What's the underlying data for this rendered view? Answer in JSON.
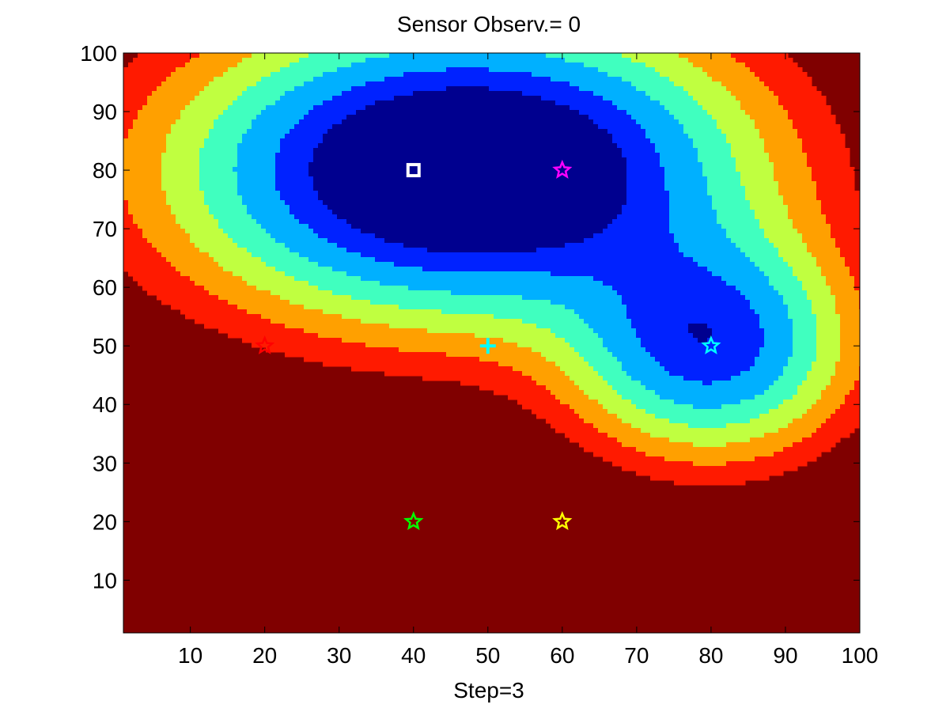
{
  "chart_data": {
    "type": "contour",
    "title": "Sensor  Observ.= 0",
    "xlabel": "Step=3",
    "ylabel": "",
    "xlim": [
      1,
      100
    ],
    "ylim": [
      1,
      100
    ],
    "xticks": [
      10,
      20,
      30,
      40,
      50,
      60,
      70,
      80,
      90,
      100
    ],
    "yticks": [
      10,
      20,
      30,
      40,
      50,
      60,
      70,
      80,
      90,
      100
    ],
    "grid": false,
    "colormap": [
      "#00008f",
      "#0022ff",
      "#00b0ff",
      "#40ffbf",
      "#c0ff40",
      "#ffa000",
      "#ff1a00",
      "#800000"
    ],
    "field_centers": [
      {
        "x": 40,
        "y": 80
      },
      {
        "x": 60,
        "y": 80
      },
      {
        "x": 80,
        "y": 50
      }
    ],
    "markers": [
      {
        "shape": "square",
        "x": 40,
        "y": 80,
        "color": "#ffffff"
      },
      {
        "shape": "star",
        "x": 60,
        "y": 80,
        "color": "#ff00ff"
      },
      {
        "shape": "star",
        "x": 80,
        "y": 50,
        "color": "#00ffff"
      },
      {
        "shape": "star",
        "x": 20,
        "y": 50,
        "color": "#ff0000"
      },
      {
        "shape": "plus",
        "x": 50,
        "y": 50,
        "color": "#00ffff"
      },
      {
        "shape": "star",
        "x": 40,
        "y": 20,
        "color": "#00ff00"
      },
      {
        "shape": "star",
        "x": 60,
        "y": 20,
        "color": "#ffff00"
      }
    ]
  }
}
